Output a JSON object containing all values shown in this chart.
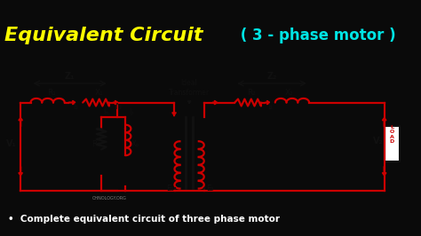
{
  "title1": "Equivalent Circuit",
  "title2": " ( 3 - phase motor )",
  "subtitle": "Complete equivalent circuit of three phase motor",
  "bg_color": "#0a0a0a",
  "circuit_bg": "#dcdcdc",
  "title1_color": "#ffff00",
  "title2_color": "#00e5e5",
  "red": "#cc0000",
  "black": "#111111",
  "gray": "#aaaaaa"
}
